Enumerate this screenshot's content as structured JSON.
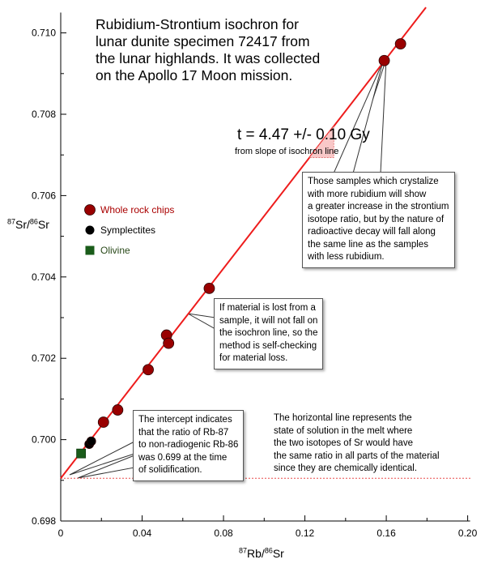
{
  "chart_data": {
    "type": "scatter",
    "title_lines": [
      "Rubidium-Strontium isochron for",
      "lunar dunite specimen 72417 from",
      "the lunar highlands. It was collected",
      "on the Apollo 17 Moon mission."
    ],
    "xlabel": {
      "sup1": "87",
      "main1": "Rb/",
      "sup2": "86",
      "main2": "Sr"
    },
    "ylabel": {
      "sup1": "87",
      "main1": "Sr/",
      "sup2": "86",
      "main2": "Sr"
    },
    "xlim": [
      0,
      0.2
    ],
    "ylim": [
      0.698,
      0.7105
    ],
    "x_ticks": [
      0,
      0.04,
      0.08,
      0.12,
      0.16,
      0.2
    ],
    "x_tick_labels": [
      "0",
      "0.04",
      "0.08",
      "0.12",
      "0.16",
      "0.20"
    ],
    "y_ticks": [
      0.698,
      0.7,
      0.702,
      0.704,
      0.706,
      0.708,
      0.71
    ],
    "y_tick_labels": [
      "0.698",
      "0.700",
      "0.702",
      "0.704",
      "0.706",
      "0.708",
      "0.710"
    ],
    "grid": false,
    "legend_position": "left",
    "isochron_line": {
      "intercept": 0.69905,
      "slope": 0.0645,
      "color": "#ee1c1c"
    },
    "initial_ratio_line": {
      "y": 0.69905,
      "color": "#e84a4a"
    },
    "series": [
      {
        "name": "Whole rock chips",
        "marker": "circle",
        "color": "#990000",
        "label_color": "#aa0000",
        "points": [
          [
            0.021,
            0.70043
          ],
          [
            0.028,
            0.70073
          ],
          [
            0.043,
            0.70172
          ],
          [
            0.052,
            0.70257
          ],
          [
            0.053,
            0.70237
          ],
          [
            0.073,
            0.70372
          ],
          [
            0.159,
            0.70932
          ],
          [
            0.167,
            0.70973
          ]
        ]
      },
      {
        "name": "Symplectites",
        "marker": "circle",
        "color": "#000000",
        "label_color": "#000000",
        "points": [
          [
            0.014,
            0.69989
          ],
          [
            0.015,
            0.69996
          ]
        ]
      },
      {
        "name": "Olivine",
        "marker": "square",
        "color": "#1a5c1a",
        "label_color": "#2a4a1a",
        "points": [
          [
            0.01,
            0.69966
          ]
        ]
      }
    ],
    "slope_annotation": {
      "main": "t = 4.47 +/- 0.10 Gy",
      "sub": "from slope of isochron line"
    },
    "annotations": {
      "crystalize": [
        "Those samples which crystalize",
        "with more rubidium will show",
        "a greater increase in the strontium",
        "isotope ratio, but by the nature of",
        "radioactive decay will fall along",
        "the same line as the samples",
        "with less rubidium."
      ],
      "material_loss": [
        "If material is lost from a",
        "sample, it will not fall on",
        "the isochron line, so the",
        "method is self-checking",
        "for material loss."
      ],
      "intercept": [
        "The intercept indicates",
        "that the ratio of Rb-87",
        "to non-radiogenic Rb-86",
        "was 0.699 at the time",
        "of solidification."
      ],
      "horizontal": [
        "The horizontal line represents the",
        "state of solution in the melt where",
        "the two isotopes of Sr would have",
        "the same ratio in all parts of the material",
        "since they are chemically identical."
      ]
    }
  }
}
